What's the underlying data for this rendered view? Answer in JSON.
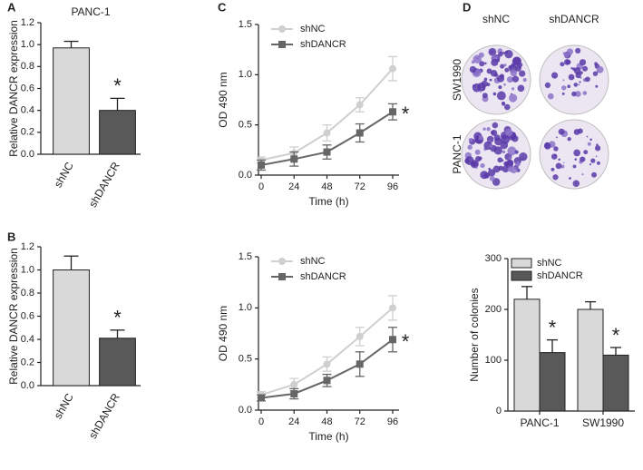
{
  "panel_labels": [
    "A",
    "B",
    "C",
    "D"
  ],
  "colony_images": {
    "columns": [
      "shNC",
      "shDANCR"
    ],
    "rows": [
      "SW1990",
      "PANC-1"
    ]
  },
  "chart_data": [
    {
      "type": "bar",
      "title": "PANC-1",
      "y_label": "Relative DANCR expression",
      "categories": [
        "shNC",
        "shDANCR"
      ],
      "values": [
        0.97,
        0.4
      ],
      "errors": [
        0.06,
        0.11
      ],
      "colors": [
        "#d9d9d9",
        "#595959"
      ],
      "ylim": [
        0,
        1.2
      ],
      "yticks": [
        {
          "value": 0,
          "label": "0.0"
        },
        0.2,
        0.4,
        0.6,
        0.8,
        {
          "value": 1,
          "label": "1.0"
        },
        1.2
      ],
      "annotations": [
        "*"
      ]
    },
    {
      "type": "bar",
      "y_label": "Relative DANCR expression",
      "categories": [
        "shNC",
        "shDANCR"
      ],
      "values": [
        1.0,
        0.41
      ],
      "errors": [
        0.12,
        0.07
      ],
      "colors": [
        "#d9d9d9",
        "#595959"
      ],
      "ylim": [
        0,
        1.2
      ],
      "yticks": [
        {
          "value": 0,
          "label": "0.0"
        },
        0.2,
        0.4,
        0.6,
        0.8,
        {
          "value": 1,
          "label": "1.0"
        },
        1.2
      ],
      "annotations": [
        "*"
      ]
    },
    {
      "type": "line",
      "x_label": "Time (h)",
      "y_label": "OD 490 nm",
      "legend": "top-left",
      "x": [
        0,
        24,
        48,
        72,
        96
      ],
      "xlim": [
        0,
        96
      ],
      "xticks": [
        0,
        24,
        48,
        72,
        96
      ],
      "ylim": [
        0,
        1.5
      ],
      "yticks": [
        {
          "value": 0,
          "label": "0.0"
        },
        0.5,
        {
          "value": 1,
          "label": "1.0"
        },
        1.5
      ],
      "series": [
        {
          "name": "shNC",
          "color": "#cfcfcf",
          "marker": "circle",
          "values": [
            0.15,
            0.22,
            0.42,
            0.7,
            1.06
          ],
          "errors": [
            0.03,
            0.06,
            0.08,
            0.07,
            0.12
          ]
        },
        {
          "name": "shDANCR",
          "color": "#666666",
          "marker": "square",
          "values": [
            0.1,
            0.16,
            0.23,
            0.42,
            0.63
          ],
          "errors": [
            0.05,
            0.07,
            0.07,
            0.09,
            0.08
          ]
        }
      ],
      "annotations": [
        "*"
      ]
    },
    {
      "type": "line",
      "x_label": "Time (h)",
      "y_label": "OD 490 nm",
      "legend": "top-left",
      "x": [
        0,
        24,
        48,
        72,
        96
      ],
      "xlim": [
        0,
        96
      ],
      "xticks": [
        0,
        24,
        48,
        72,
        96
      ],
      "ylim": [
        0,
        1.5
      ],
      "yticks": [
        {
          "value": 0,
          "label": "0.0"
        },
        0.5,
        {
          "value": 1,
          "label": "1.0"
        },
        1.5
      ],
      "series": [
        {
          "name": "shNC",
          "color": "#cfcfcf",
          "marker": "circle",
          "values": [
            0.15,
            0.25,
            0.45,
            0.72,
            1.0
          ],
          "errors": [
            0.03,
            0.06,
            0.07,
            0.09,
            0.12
          ]
        },
        {
          "name": "shDANCR",
          "color": "#666666",
          "marker": "square",
          "values": [
            0.12,
            0.16,
            0.29,
            0.45,
            0.69
          ],
          "errors": [
            0.03,
            0.05,
            0.06,
            0.12,
            0.12
          ]
        }
      ],
      "annotations": [
        "*"
      ]
    },
    {
      "type": "grouped_bar",
      "y_label": "Number of colonies",
      "legend": "top-left",
      "categories": [
        "PANC-1",
        "SW1990"
      ],
      "ylim": [
        0,
        300
      ],
      "yticks": [
        0,
        100,
        200,
        300
      ],
      "series": [
        {
          "name": "shNC",
          "color": "#d9d9d9",
          "values": [
            220,
            200
          ],
          "errors": [
            25,
            15
          ]
        },
        {
          "name": "shDANCR",
          "color": "#595959",
          "values": [
            115,
            110
          ],
          "errors": [
            25,
            15
          ]
        }
      ],
      "annotations": [
        "*",
        "*"
      ]
    }
  ]
}
